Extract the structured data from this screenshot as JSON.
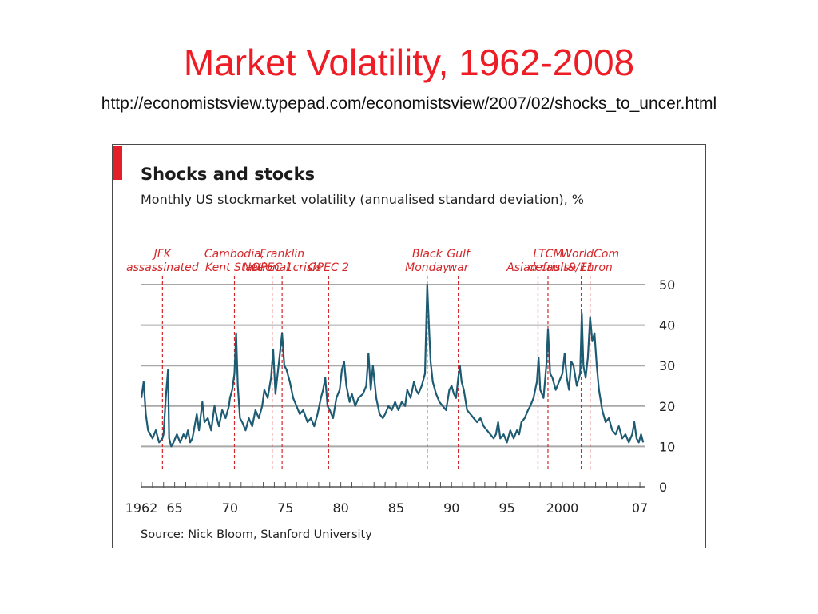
{
  "slide": {
    "title": "Market Volatility, 1962-2008",
    "url": "http://economistsview.typepad.com/economistsview/2007/02/shocks_to_uncer.html"
  },
  "colors": {
    "title": "#ee1c25",
    "series": "#1d5b73",
    "gridline": "#a8a8a8",
    "annotation": "#d4272a",
    "accent_bar": "#e3202a"
  },
  "chart_data": {
    "type": "line",
    "title": "Shocks and stocks",
    "subtitle": "Monthly US stockmarket volatility (annualised standard deviation), %",
    "source": "Source: Nick Bloom, Stanford University",
    "xlim": [
      1962,
      2007.5
    ],
    "ylim": [
      0,
      50
    ],
    "y_ticks": [
      0,
      10,
      20,
      30,
      40,
      50
    ],
    "x_tick_labels": [
      {
        "x": 1962,
        "label": "1962"
      },
      {
        "x": 1965,
        "label": "65"
      },
      {
        "x": 1970,
        "label": "70"
      },
      {
        "x": 1975,
        "label": "75"
      },
      {
        "x": 1980,
        "label": "80"
      },
      {
        "x": 1985,
        "label": "85"
      },
      {
        "x": 1990,
        "label": "90"
      },
      {
        "x": 1995,
        "label": "95"
      },
      {
        "x": 2000,
        "label": "2000"
      },
      {
        "x": 2007,
        "label": "07"
      }
    ],
    "grid": true,
    "y_axis_position": "right",
    "series": [
      {
        "values": [
          [
            1962.0,
            22
          ],
          [
            1962.2,
            26
          ],
          [
            1962.4,
            18
          ],
          [
            1962.6,
            14
          ],
          [
            1962.8,
            13
          ],
          [
            1963.0,
            12
          ],
          [
            1963.3,
            14
          ],
          [
            1963.6,
            11
          ],
          [
            1963.9,
            12
          ],
          [
            1964.0,
            13
          ],
          [
            1964.2,
            22
          ],
          [
            1964.4,
            29
          ],
          [
            1964.5,
            12
          ],
          [
            1964.7,
            10
          ],
          [
            1964.9,
            11
          ],
          [
            1965.2,
            13
          ],
          [
            1965.5,
            11
          ],
          [
            1965.8,
            13
          ],
          [
            1966.0,
            12
          ],
          [
            1966.2,
            14
          ],
          [
            1966.4,
            11
          ],
          [
            1966.6,
            12
          ],
          [
            1966.8,
            15
          ],
          [
            1967.0,
            18
          ],
          [
            1967.2,
            14
          ],
          [
            1967.5,
            21
          ],
          [
            1967.7,
            16
          ],
          [
            1968.0,
            17
          ],
          [
            1968.3,
            14
          ],
          [
            1968.6,
            20
          ],
          [
            1968.9,
            16
          ],
          [
            1969.0,
            15
          ],
          [
            1969.3,
            19
          ],
          [
            1969.6,
            17
          ],
          [
            1969.9,
            20
          ],
          [
            1970.0,
            22
          ],
          [
            1970.2,
            24
          ],
          [
            1970.4,
            28
          ],
          [
            1970.55,
            38
          ],
          [
            1970.7,
            25
          ],
          [
            1970.9,
            17
          ],
          [
            1971.1,
            16
          ],
          [
            1971.4,
            14
          ],
          [
            1971.7,
            17
          ],
          [
            1972.0,
            15
          ],
          [
            1972.3,
            19
          ],
          [
            1972.6,
            17
          ],
          [
            1972.9,
            20
          ],
          [
            1973.1,
            24
          ],
          [
            1973.4,
            22
          ],
          [
            1973.7,
            27
          ],
          [
            1973.9,
            34
          ],
          [
            1974.1,
            23
          ],
          [
            1974.3,
            28
          ],
          [
            1974.5,
            33
          ],
          [
            1974.7,
            38
          ],
          [
            1974.9,
            30
          ],
          [
            1975.1,
            29
          ],
          [
            1975.4,
            26
          ],
          [
            1975.7,
            22
          ],
          [
            1976.0,
            20
          ],
          [
            1976.3,
            18
          ],
          [
            1976.6,
            19
          ],
          [
            1977.0,
            16
          ],
          [
            1977.3,
            17
          ],
          [
            1977.6,
            15
          ],
          [
            1977.9,
            18
          ],
          [
            1978.2,
            22
          ],
          [
            1978.4,
            24
          ],
          [
            1978.6,
            27
          ],
          [
            1978.8,
            20
          ],
          [
            1979.0,
            19
          ],
          [
            1979.3,
            17
          ],
          [
            1979.6,
            22
          ],
          [
            1979.9,
            24
          ],
          [
            1980.1,
            29
          ],
          [
            1980.3,
            31
          ],
          [
            1980.5,
            25
          ],
          [
            1980.8,
            21
          ],
          [
            1981.0,
            23
          ],
          [
            1981.3,
            20
          ],
          [
            1981.6,
            22
          ],
          [
            1982.0,
            23
          ],
          [
            1982.3,
            25
          ],
          [
            1982.5,
            33
          ],
          [
            1982.7,
            24
          ],
          [
            1982.9,
            30
          ],
          [
            1983.2,
            22
          ],
          [
            1983.5,
            18
          ],
          [
            1983.8,
            17
          ],
          [
            1984.0,
            18
          ],
          [
            1984.3,
            20
          ],
          [
            1984.6,
            19
          ],
          [
            1984.9,
            21
          ],
          [
            1985.2,
            19
          ],
          [
            1985.5,
            21
          ],
          [
            1985.8,
            20
          ],
          [
            1986.0,
            24
          ],
          [
            1986.3,
            22
          ],
          [
            1986.6,
            26
          ],
          [
            1986.8,
            24
          ],
          [
            1987.0,
            23
          ],
          [
            1987.3,
            25
          ],
          [
            1987.6,
            28
          ],
          [
            1987.8,
            50
          ],
          [
            1987.95,
            40
          ],
          [
            1988.1,
            31
          ],
          [
            1988.3,
            26
          ],
          [
            1988.6,
            23
          ],
          [
            1988.9,
            21
          ],
          [
            1989.2,
            20
          ],
          [
            1989.5,
            19
          ],
          [
            1989.8,
            24
          ],
          [
            1990.0,
            25
          ],
          [
            1990.2,
            23
          ],
          [
            1990.4,
            22
          ],
          [
            1990.6,
            27
          ],
          [
            1990.75,
            30
          ],
          [
            1990.9,
            26
          ],
          [
            1991.1,
            24
          ],
          [
            1991.4,
            19
          ],
          [
            1991.7,
            18
          ],
          [
            1992.0,
            17
          ],
          [
            1992.3,
            16
          ],
          [
            1992.6,
            17
          ],
          [
            1992.9,
            15
          ],
          [
            1993.2,
            14
          ],
          [
            1993.5,
            13
          ],
          [
            1993.8,
            12
          ],
          [
            1994.0,
            13
          ],
          [
            1994.2,
            16
          ],
          [
            1994.4,
            12
          ],
          [
            1994.7,
            13
          ],
          [
            1995.0,
            11
          ],
          [
            1995.3,
            14
          ],
          [
            1995.6,
            12
          ],
          [
            1995.9,
            14
          ],
          [
            1996.1,
            13
          ],
          [
            1996.3,
            16
          ],
          [
            1996.6,
            17
          ],
          [
            1996.9,
            19
          ],
          [
            1997.1,
            20
          ],
          [
            1997.4,
            22
          ],
          [
            1997.7,
            26
          ],
          [
            1997.85,
            32
          ],
          [
            1998.0,
            24
          ],
          [
            1998.3,
            22
          ],
          [
            1998.55,
            30
          ],
          [
            1998.7,
            39
          ],
          [
            1998.9,
            28
          ],
          [
            1999.1,
            27
          ],
          [
            1999.4,
            24
          ],
          [
            1999.7,
            26
          ],
          [
            2000.0,
            28
          ],
          [
            2000.2,
            33
          ],
          [
            2000.4,
            27
          ],
          [
            2000.6,
            24
          ],
          [
            2000.8,
            31
          ],
          [
            2001.0,
            30
          ],
          [
            2001.3,
            25
          ],
          [
            2001.6,
            28
          ],
          [
            2001.75,
            43
          ],
          [
            2001.9,
            30
          ],
          [
            2002.1,
            27
          ],
          [
            2002.3,
            32
          ],
          [
            2002.5,
            42
          ],
          [
            2002.7,
            36
          ],
          [
            2002.9,
            38
          ],
          [
            2003.1,
            30
          ],
          [
            2003.3,
            24
          ],
          [
            2003.6,
            19
          ],
          [
            2003.9,
            16
          ],
          [
            2004.2,
            17
          ],
          [
            2004.5,
            14
          ],
          [
            2004.8,
            13
          ],
          [
            2005.1,
            15
          ],
          [
            2005.4,
            12
          ],
          [
            2005.7,
            13
          ],
          [
            2006.0,
            11
          ],
          [
            2006.3,
            13
          ],
          [
            2006.5,
            16
          ],
          [
            2006.7,
            12
          ],
          [
            2006.9,
            11
          ],
          [
            2007.1,
            13
          ],
          [
            2007.3,
            11
          ]
        ]
      }
    ],
    "annotations": [
      {
        "x": 1963.9,
        "lines": [
          "JFK",
          "assassinated"
        ]
      },
      {
        "x": 1970.4,
        "lines": [
          "Cambodia,",
          "Kent State"
        ]
      },
      {
        "x": 1973.8,
        "lines": [
          "OPEC 1"
        ]
      },
      {
        "x": 1974.7,
        "lines": [
          "Franklin",
          "National crisis"
        ]
      },
      {
        "x": 1978.9,
        "lines": [
          "OPEC 2"
        ]
      },
      {
        "x": 1987.8,
        "lines": [
          "Black",
          "Monday"
        ]
      },
      {
        "x": 1990.6,
        "lines": [
          "Gulf",
          "war"
        ]
      },
      {
        "x": 1997.8,
        "lines": [
          "Asian crisis"
        ]
      },
      {
        "x": 1998.7,
        "lines": [
          "LTCM",
          "default"
        ]
      },
      {
        "x": 2001.7,
        "lines": [
          "9/11"
        ]
      },
      {
        "x": 2002.5,
        "lines": [
          "WorldCom",
          "& Enron"
        ]
      }
    ]
  }
}
